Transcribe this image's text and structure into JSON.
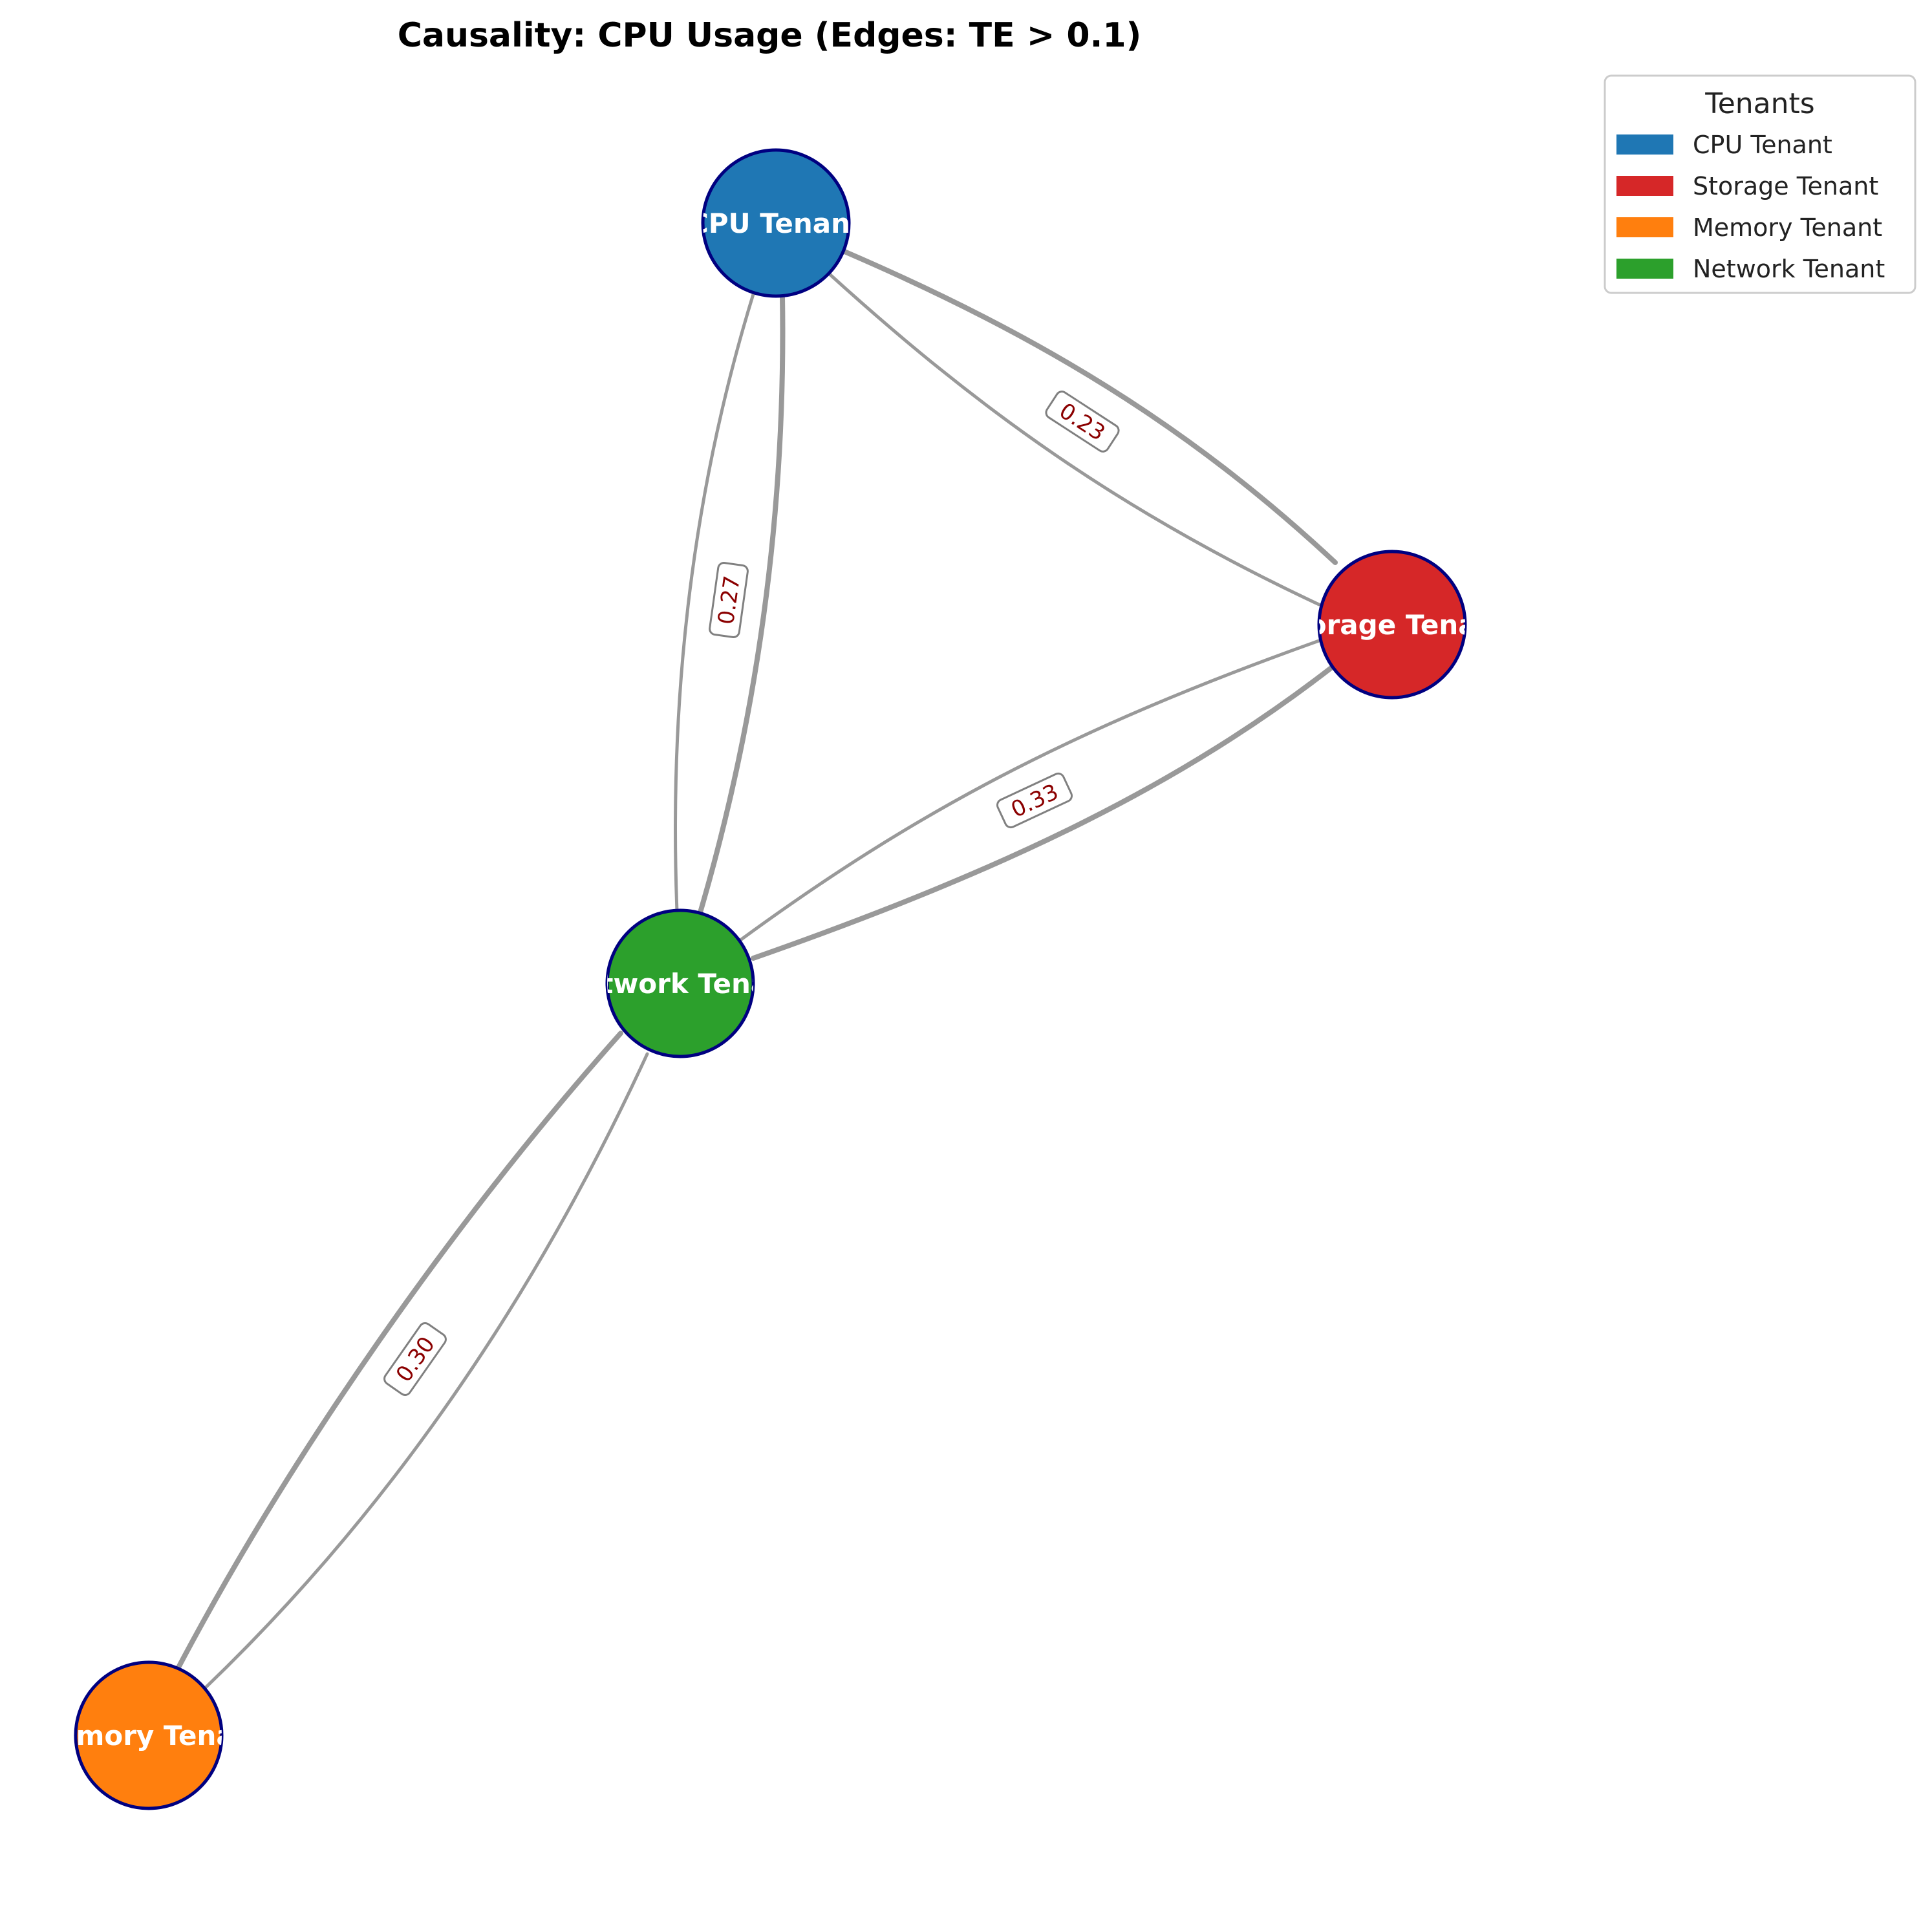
{
  "title": "Causality: CPU Usage (Edges: TE > 0.1)",
  "legend": {
    "title": "Tenants",
    "items": [
      {
        "label": "CPU Tenant",
        "color": "#1f77b4"
      },
      {
        "label": "Storage Tenant",
        "color": "#d62728"
      },
      {
        "label": "Memory Tenant",
        "color": "#ff7f0e"
      },
      {
        "label": "Network Tenant",
        "color": "#2ca02c"
      }
    ]
  },
  "nodes": [
    {
      "id": "cpu",
      "label": "CPU Tenant",
      "color": "#1f77b4"
    },
    {
      "id": "storage",
      "label": "Storage Tenant",
      "color": "#d62728"
    },
    {
      "id": "network",
      "label": "Network Tenant",
      "color": "#2ca02c"
    },
    {
      "id": "memory",
      "label": "Memory Tenant",
      "color": "#ff7f0e"
    }
  ],
  "edge_labels": [
    {
      "between": [
        "cpu",
        "network"
      ],
      "value": "0.27"
    },
    {
      "between": [
        "cpu",
        "storage"
      ],
      "value": "0.23"
    },
    {
      "between": [
        "network",
        "storage"
      ],
      "value": "0.33"
    },
    {
      "between": [
        "network",
        "memory"
      ],
      "value": "0.30"
    }
  ],
  "style": {
    "edge_color": "#999999",
    "node_border": "#000080",
    "edge_label_color": "#8b0000"
  }
}
